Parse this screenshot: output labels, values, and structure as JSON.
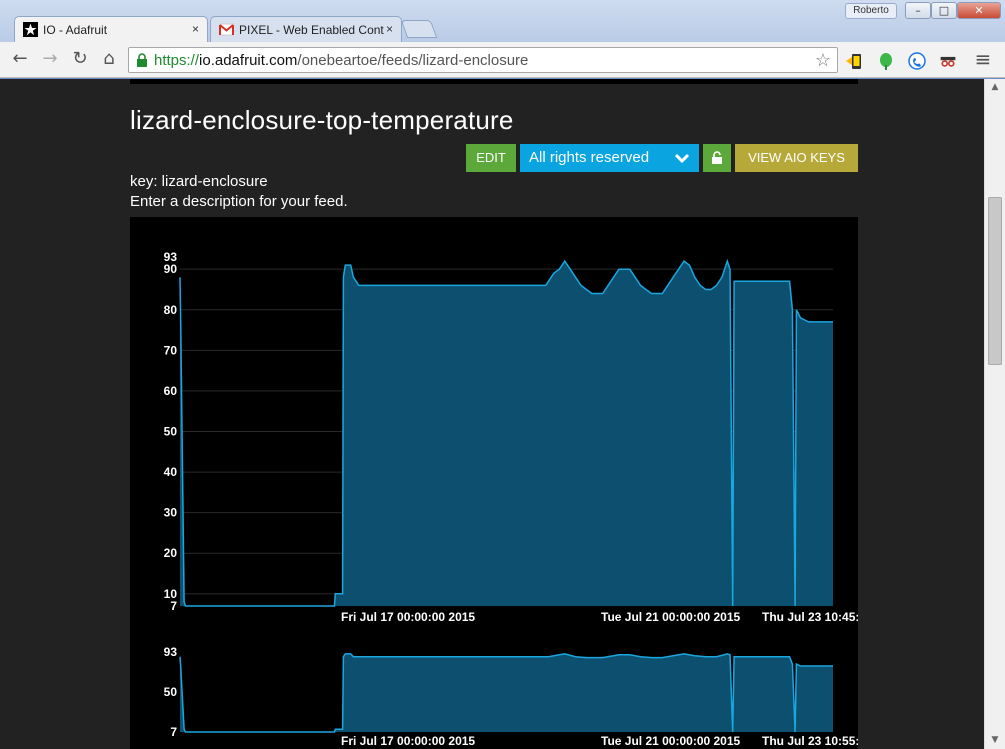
{
  "browser": {
    "tabs": [
      {
        "title": "IO - Adafruit",
        "close": "×"
      },
      {
        "title": "PIXEL - Web Enabled Cont",
        "close": "×"
      }
    ],
    "user": "Roberto",
    "window_buttons": {
      "minimize": "–",
      "maximize": "□",
      "close": "✕"
    },
    "url": {
      "scheme": "https://",
      "host": "io.adafruit.com",
      "path": "/onebeartoe/feeds/lizard-enclosure"
    },
    "nav": {
      "back": "←",
      "forward": "→",
      "reload": "↻",
      "home": "⌂"
    },
    "star": "☆",
    "menu": "≡"
  },
  "feed": {
    "title": "lizard-enclosure-top-temperature",
    "buttons": {
      "edit": "EDIT",
      "rights": "All rights reserved",
      "view_keys": "VIEW AIO KEYS"
    },
    "key_line": "key: lizard-enclosure",
    "description": "Enter a description for your feed."
  },
  "colors": {
    "accent_green": "#5ca83a",
    "accent_blue": "#0aa4e0",
    "accent_olive": "#b6a93a",
    "series_fill": "#0d4f6e",
    "series_line": "#1aa7e0"
  },
  "chart_data": [
    {
      "type": "area",
      "title": "",
      "y_ticks": [
        7,
        10,
        20,
        30,
        40,
        50,
        60,
        70,
        80,
        90,
        93
      ],
      "ylim": [
        7,
        93
      ],
      "x_labels": [
        "Fri Jul 17 00:00:00 2015",
        "Tue Jul 21 00:00:00 2015",
        "Thu Jul 23 10:45:"
      ],
      "grid": true,
      "series": [
        {
          "values": [
            [
              0,
              88
            ],
            [
              0.3,
              75
            ],
            [
              1.5,
              8
            ],
            [
              2,
              7
            ],
            [
              3,
              7
            ],
            [
              10,
              7
            ],
            [
              20,
              7
            ],
            [
              30,
              7
            ],
            [
              40,
              7
            ],
            [
              50,
              7
            ],
            [
              55,
              7
            ],
            [
              57,
              7
            ],
            [
              57.3,
              10
            ],
            [
              60,
              10
            ],
            [
              60.3,
              88
            ],
            [
              61,
              91
            ],
            [
              63,
              91
            ],
            [
              64,
              88
            ],
            [
              65,
              87
            ],
            [
              66,
              86
            ],
            [
              70,
              86
            ],
            [
              80,
              86
            ],
            [
              90,
              86
            ],
            [
              100,
              86
            ],
            [
              110,
              86
            ],
            [
              120,
              86
            ],
            [
              130,
              86
            ],
            [
              135,
              86
            ],
            [
              136,
              87
            ],
            [
              138,
              89
            ],
            [
              140,
              90
            ],
            [
              142,
              92
            ],
            [
              144,
              90
            ],
            [
              146,
              88
            ],
            [
              148,
              86
            ],
            [
              150,
              85
            ],
            [
              152,
              84
            ],
            [
              156,
              84
            ],
            [
              158,
              86
            ],
            [
              160,
              88
            ],
            [
              162,
              90
            ],
            [
              166,
              90
            ],
            [
              168,
              88
            ],
            [
              170,
              86
            ],
            [
              172,
              85
            ],
            [
              174,
              84
            ],
            [
              178,
              84
            ],
            [
              180,
              86
            ],
            [
              182,
              88
            ],
            [
              184,
              90
            ],
            [
              186,
              92
            ],
            [
              188,
              91
            ],
            [
              190,
              88
            ],
            [
              192,
              86
            ],
            [
              194,
              85
            ],
            [
              196,
              85
            ],
            [
              198,
              86
            ],
            [
              200,
              88
            ],
            [
              202,
              92
            ],
            [
              203,
              90
            ],
            [
              204,
              7
            ],
            [
              204.5,
              87
            ],
            [
              210,
              87
            ],
            [
              220,
              87
            ],
            [
              225,
              87
            ],
            [
              226,
              80
            ],
            [
              227,
              7
            ],
            [
              227.5,
              80
            ],
            [
              229,
              78
            ],
            [
              232,
              77
            ],
            [
              236,
              77
            ],
            [
              240,
              77
            ],
            [
              241,
              77
            ]
          ]
        }
      ]
    },
    {
      "type": "area",
      "title": "",
      "y_ticks": [
        7,
        50,
        93
      ],
      "ylim": [
        7,
        93
      ],
      "x_labels": [
        "Fri Jul 17 00:00:00 2015",
        "Tue Jul 21 00:00:00 2015",
        "Thu Jul 23 10:55:"
      ],
      "grid": false,
      "series": [
        {
          "values": [
            [
              0,
              88
            ],
            [
              0.3,
              75
            ],
            [
              1.5,
              10
            ],
            [
              2,
              7
            ],
            [
              10,
              7
            ],
            [
              30,
              7
            ],
            [
              50,
              7
            ],
            [
              57,
              7
            ],
            [
              57.3,
              10
            ],
            [
              60,
              10
            ],
            [
              60.3,
              88
            ],
            [
              61,
              91
            ],
            [
              63,
              91
            ],
            [
              64,
              88
            ],
            [
              70,
              88
            ],
            [
              90,
              88
            ],
            [
              110,
              88
            ],
            [
              130,
              88
            ],
            [
              136,
              88
            ],
            [
              140,
              90
            ],
            [
              142,
              91
            ],
            [
              146,
              88
            ],
            [
              150,
              87
            ],
            [
              156,
              87
            ],
            [
              160,
              89
            ],
            [
              162,
              90
            ],
            [
              166,
              90
            ],
            [
              170,
              88
            ],
            [
              174,
              87
            ],
            [
              178,
              87
            ],
            [
              182,
              89
            ],
            [
              186,
              91
            ],
            [
              190,
              89
            ],
            [
              194,
              88
            ],
            [
              198,
              88
            ],
            [
              202,
              91
            ],
            [
              203,
              90
            ],
            [
              204,
              7
            ],
            [
              204.5,
              88
            ],
            [
              210,
              88
            ],
            [
              225,
              88
            ],
            [
              226,
              80
            ],
            [
              227,
              7
            ],
            [
              227.5,
              80
            ],
            [
              229,
              78
            ],
            [
              236,
              78
            ],
            [
              241,
              78
            ]
          ]
        }
      ]
    }
  ]
}
